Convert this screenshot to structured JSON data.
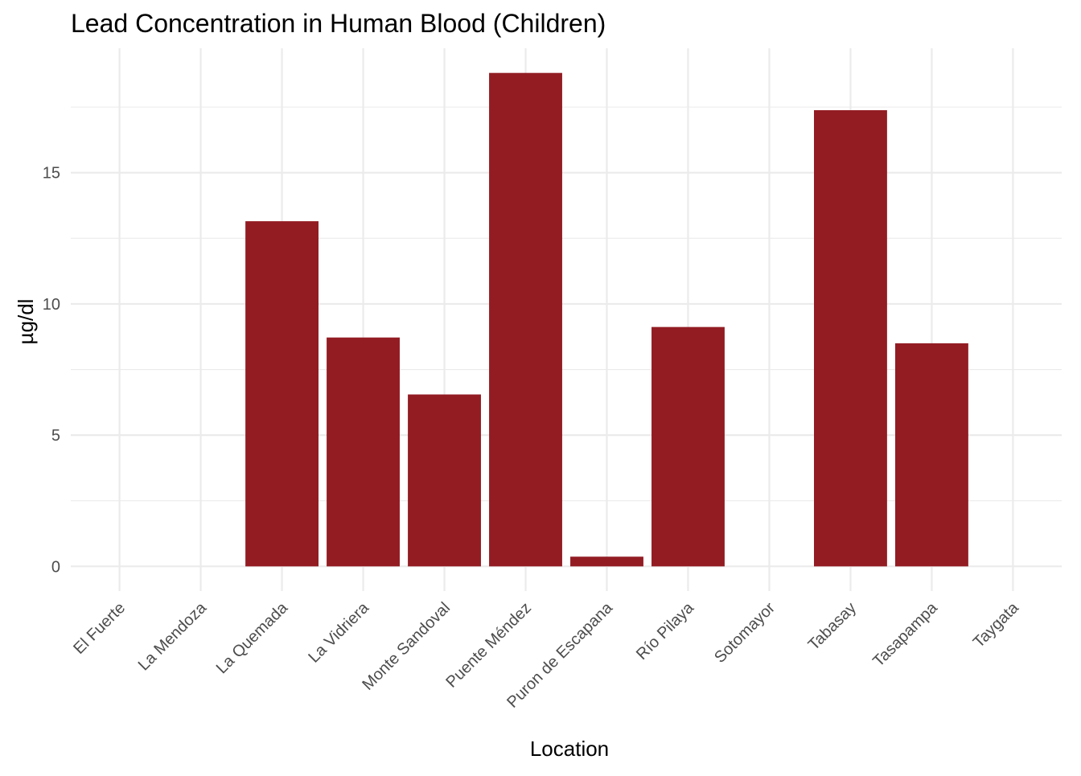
{
  "chart_data": {
    "type": "bar",
    "title": "Lead Concentration in Human Blood (Children)",
    "xlabel": "Location",
    "ylabel": "µg/dl",
    "categories": [
      "El Fuerte",
      "La Mendoza",
      "La Quemada",
      "La Vidriera",
      "Monte Sandoval",
      "Puente Méndez",
      "Puron de Escapana",
      "Río Pilaya",
      "Sotomayor",
      "Tabasay",
      "Tasapampa",
      "Taygata"
    ],
    "values": [
      0,
      0,
      13.15,
      8.72,
      6.55,
      18.8,
      0.37,
      9.12,
      0,
      17.38,
      8.5,
      0
    ],
    "yticks": [
      0,
      5,
      10,
      15
    ],
    "ylim": [
      -0.94,
      19.74
    ],
    "grid": true,
    "bar_color": "#931C23",
    "grid_color": "#EBEBEB"
  }
}
